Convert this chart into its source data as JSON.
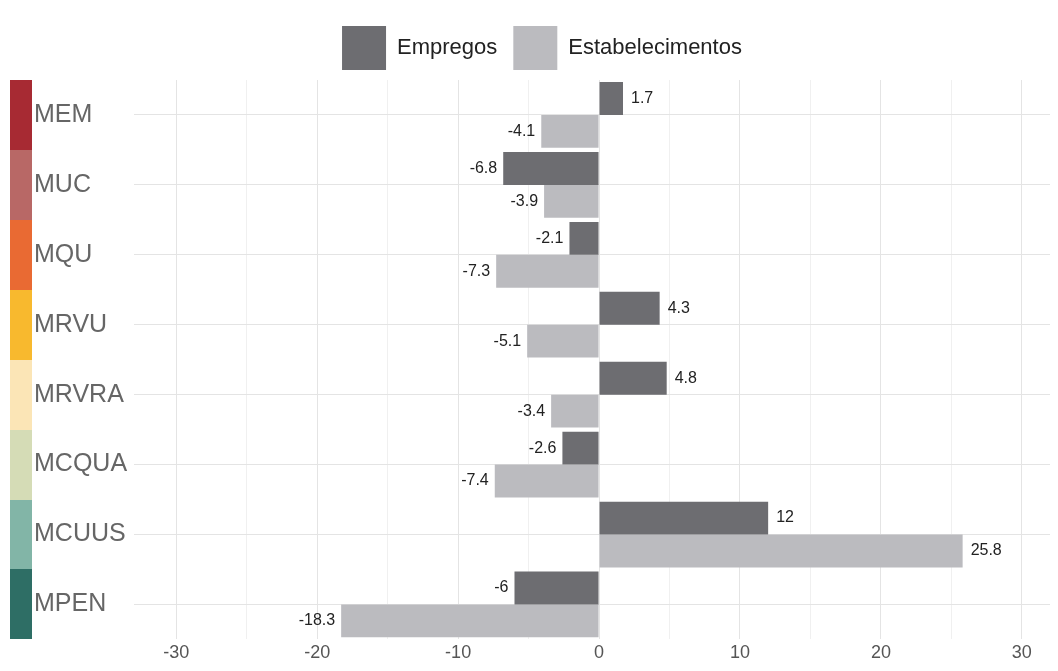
{
  "chart_data": {
    "type": "bar",
    "orientation": "horizontal",
    "categories": [
      "MEM",
      "MUC",
      "MQU",
      "MRVU",
      "MRVRA",
      "MCQUA",
      "MCUUS",
      "MPEN"
    ],
    "series": [
      {
        "name": "Empregos",
        "color": "#6d6d71",
        "values": [
          1.7,
          -6.8,
          -2.1,
          4.3,
          4.8,
          -2.6,
          12,
          -6
        ]
      },
      {
        "name": "Estabelecimentos",
        "color": "#bbbbbf",
        "values": [
          -4.1,
          -3.9,
          -7.3,
          -5.1,
          -3.4,
          -7.4,
          25.8,
          -18.3
        ]
      }
    ],
    "xlim": [
      -33,
      32
    ],
    "xticks": [
      -30,
      {
        "value": -25,
        "label": null
      },
      -20,
      {
        "value": -15,
        "label": null
      },
      -10,
      {
        "value": -5,
        "label": null
      },
      0,
      {
        "value": 5,
        "label": null
      },
      10,
      {
        "value": 15,
        "label": null
      },
      20,
      {
        "value": 25,
        "label": null
      },
      30
    ],
    "grid": true,
    "legend": "top",
    "data_labels": true
  }
}
